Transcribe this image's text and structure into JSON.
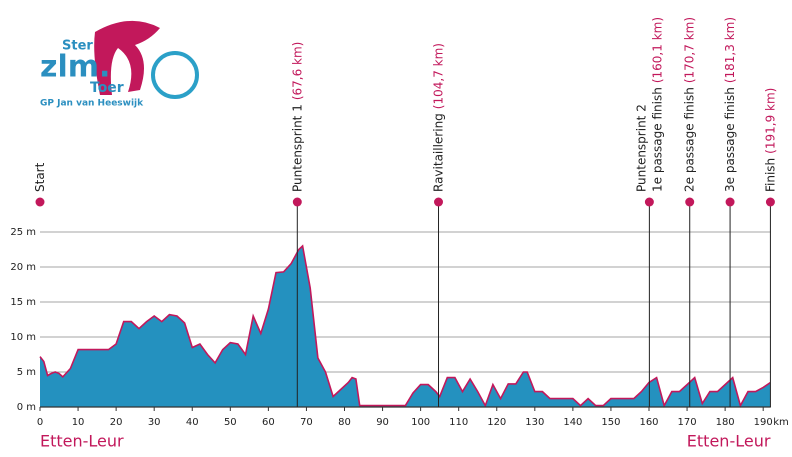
{
  "logo": {
    "top": "Ster",
    "main": "zlm.",
    "sub": "Toer",
    "tagline": "GP Jan van Heeswijk"
  },
  "chart_data": {
    "type": "area",
    "x": [
      0,
      1,
      2,
      3,
      4,
      5,
      6,
      8,
      10,
      12,
      18,
      20,
      22,
      24,
      26,
      28,
      30,
      32,
      34,
      36,
      38,
      40,
      42,
      44,
      46,
      48,
      50,
      52,
      54,
      56,
      58,
      60,
      62,
      64,
      66,
      68,
      69,
      71,
      73,
      75,
      77,
      79,
      81,
      82,
      83,
      84,
      94,
      96,
      98,
      100,
      102,
      104,
      105,
      107,
      109,
      111,
      113,
      115,
      117,
      119,
      121,
      123,
      125,
      127,
      128,
      130,
      132,
      134,
      140,
      142,
      144,
      146,
      148,
      150,
      156,
      158,
      160,
      162,
      164,
      166,
      168,
      170,
      172,
      174,
      176,
      178,
      180,
      182,
      184,
      186,
      188,
      190,
      191.9
    ],
    "values": [
      7.2,
      6.5,
      4.5,
      4.8,
      5,
      4.8,
      4.3,
      5.5,
      8.2,
      8.2,
      8.2,
      9,
      12.2,
      12.2,
      11.2,
      12.2,
      13,
      12.2,
      13.2,
      13,
      12,
      8.5,
      9,
      7.5,
      6.3,
      8.2,
      9.2,
      9,
      7.5,
      13,
      10.5,
      14,
      19.2,
      19.3,
      20.5,
      22.5,
      23,
      17,
      7,
      5,
      1.5,
      2.5,
      3.5,
      4.2,
      4,
      0.2,
      0.2,
      0.2,
      2,
      3.2,
      3.2,
      2.2,
      1.5,
      4.2,
      4.2,
      2.2,
      4,
      2.2,
      0.2,
      3.2,
      1.2,
      3.3,
      3.3,
      5,
      5,
      2.2,
      2.2,
      1.2,
      1.2,
      0.2,
      1.2,
      0.2,
      0.2,
      1.2,
      1.2,
      2.2,
      3.5,
      4.2,
      0.2,
      2.2,
      2.2,
      3.2,
      4.2,
      0.5,
      2.2,
      2.2,
      3.2,
      4.2,
      0.2,
      2.2,
      2.2,
      2.8,
      3.5
    ],
    "fill_color": "#2491bf",
    "line_color": "#c2185b",
    "xlim": [
      0,
      192
    ],
    "ylim": [
      0,
      28
    ],
    "xticks": [
      0,
      10,
      20,
      30,
      40,
      50,
      60,
      70,
      80,
      90,
      100,
      110,
      120,
      130,
      140,
      150,
      160,
      170,
      180,
      190
    ],
    "x_unit": "km",
    "yticks": [
      {
        "value": 0,
        "label": "0 m"
      },
      {
        "value": 5,
        "label": "5 m"
      },
      {
        "value": 10,
        "label": "10 m"
      },
      {
        "value": 15,
        "label": "15 m"
      },
      {
        "value": 20,
        "label": "20 m"
      },
      {
        "value": 25,
        "label": "25 m"
      }
    ],
    "grid": true,
    "markers": [
      {
        "km": 0,
        "lines": [
          "Start"
        ]
      },
      {
        "km": 67.6,
        "lines": [
          "Puntensprint 1"
        ],
        "distance": "(67,6 km)"
      },
      {
        "km": 104.7,
        "lines": [
          "Ravitaillering"
        ],
        "distance": "(104,7 km)"
      },
      {
        "km": 160.1,
        "lines": [
          "Puntensprint 2",
          "1e passage finish"
        ],
        "distance": "(160,1 km)"
      },
      {
        "km": 170.7,
        "lines": [
          "2e passage finish"
        ],
        "distance": "(170,7 km)"
      },
      {
        "km": 181.3,
        "lines": [
          "3e passage finish"
        ],
        "distance": "(181,3 km)"
      },
      {
        "km": 191.9,
        "lines": [
          "Finish"
        ],
        "distance": "(191,9 km)"
      }
    ],
    "places": [
      {
        "km": 0,
        "name": "Etten-Leur"
      },
      {
        "km": 191.9,
        "name": "Etten-Leur"
      }
    ]
  }
}
